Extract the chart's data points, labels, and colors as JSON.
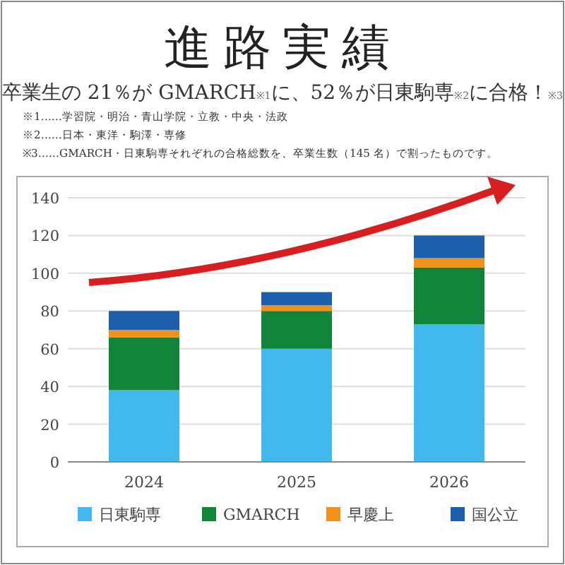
{
  "chart_data": {
    "type": "bar",
    "stacked": true,
    "title": "進路実績",
    "subtitle": "卒業生の 21％が GMARCH$_{※1}$に、52％が日東駒専$_{※2}$に合格！$_{※3}$",
    "annotations": [
      "※1……学習院・明治・青山学院・立教・中央・法政",
      "※2……日本・東洋・駒澤・専修",
      "※3……GMARCH・日東駒専それぞれの合格総数を、卒業生数（145 名）で割ったものです。"
    ],
    "categories": [
      "2024",
      "2025",
      "2026"
    ],
    "series": [
      {
        "name": "日東駒専",
        "color": "#41b9ec",
        "values": [
          38,
          60,
          73
        ]
      },
      {
        "name": "GMARCH",
        "color": "#10853a",
        "values": [
          28,
          20,
          30
        ]
      },
      {
        "name": "早慶上",
        "color": "#f0921a",
        "values": [
          4,
          3,
          5
        ]
      },
      {
        "name": "国公立",
        "color": "#1c5fab",
        "values": [
          10,
          7,
          12
        ]
      }
    ],
    "ylim": [
      0,
      140
    ],
    "yticks": [
      0,
      20,
      40,
      60,
      80,
      100,
      120,
      140
    ],
    "grid": "y",
    "legend": "bottom"
  }
}
